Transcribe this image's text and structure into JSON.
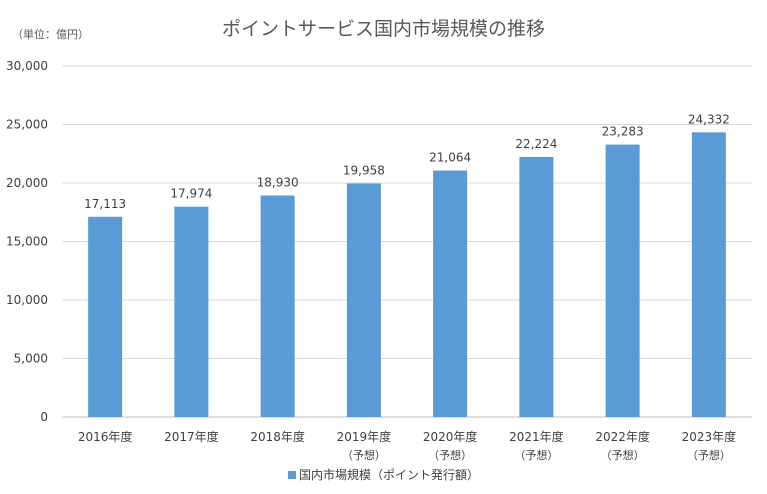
{
  "chart_data": {
    "type": "bar",
    "title": "ポイントサービス国内市場規模の推移",
    "unit_label": "（単位：億円）",
    "categories": [
      {
        "year": "2016年度",
        "note": ""
      },
      {
        "year": "2017年度",
        "note": ""
      },
      {
        "year": "2018年度",
        "note": ""
      },
      {
        "year": "2019年度",
        "note": "（予想）"
      },
      {
        "year": "2020年度",
        "note": "（予想）"
      },
      {
        "year": "2021年度",
        "note": "（予想）"
      },
      {
        "year": "2022年度",
        "note": "（予想）"
      },
      {
        "year": "2023年度",
        "note": "（予想）"
      }
    ],
    "series": [
      {
        "name": "国内市場規模（ポイント発行額）",
        "values": [
          17113,
          17974,
          18930,
          19958,
          21064,
          22224,
          23283,
          24332
        ],
        "labels": [
          "17,113",
          "17,974",
          "18,930",
          "19,958",
          "21,064",
          "22,224",
          "23,283",
          "24,332"
        ]
      }
    ],
    "ylim": [
      0,
      30000
    ],
    "yticks": [
      0,
      5000,
      10000,
      15000,
      20000,
      25000,
      30000
    ],
    "ytick_labels": [
      "0",
      "5,000",
      "10,000",
      "15,000",
      "20,000",
      "25,000",
      "30,000"
    ],
    "grid": true,
    "legend_position": "bottom",
    "colors": {
      "bar": "#5b9bd5",
      "grid": "#d9d9d9",
      "text": "#404040"
    }
  }
}
